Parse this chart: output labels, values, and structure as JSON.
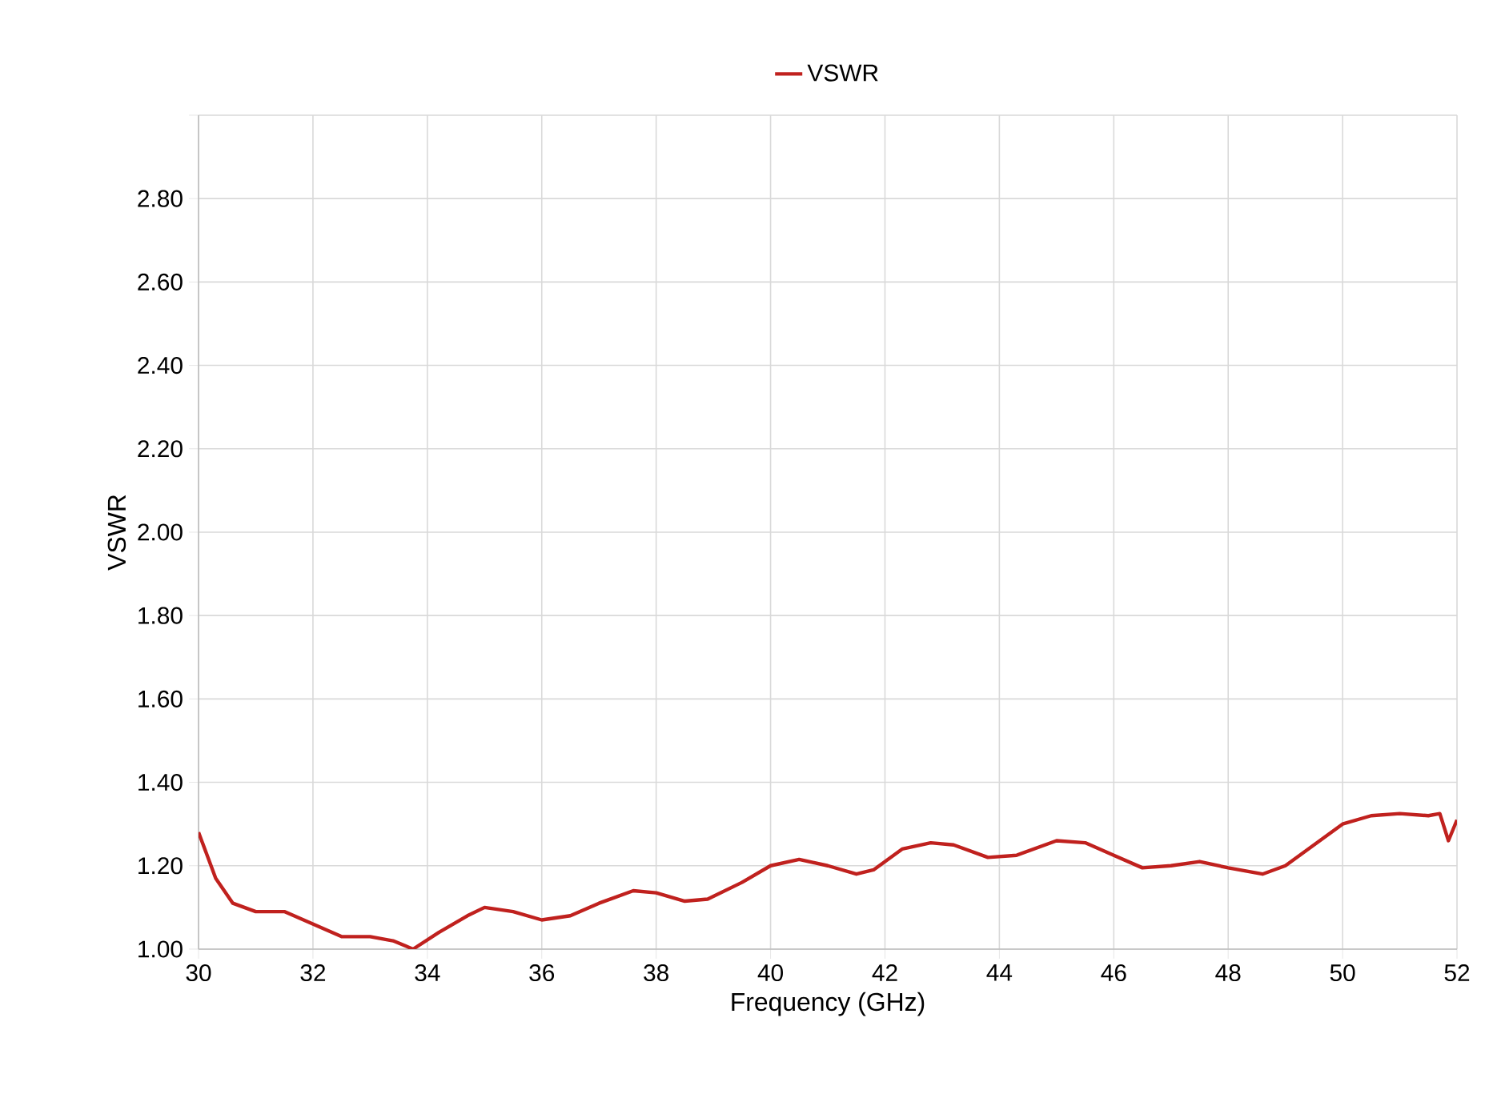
{
  "chart_data": {
    "type": "line",
    "xlabel": "Frequency (GHz)",
    "ylabel": "VSWR",
    "xlim": [
      30,
      52
    ],
    "xticks": [
      30,
      32,
      34,
      36,
      38,
      40,
      42,
      44,
      46,
      48,
      50,
      52
    ],
    "ylim": [
      1,
      3
    ],
    "yticks": [
      {
        "value": 1,
        "label": "1.00"
      },
      {
        "value": 1.2,
        "label": "1.20"
      },
      {
        "value": 1.4,
        "label": "1.40"
      },
      {
        "value": 1.6,
        "label": "1.60"
      },
      {
        "value": 1.8,
        "label": "1.80"
      },
      {
        "value": 2,
        "label": "2.00"
      },
      {
        "value": 2.2,
        "label": "2.20"
      },
      {
        "value": 2.4,
        "label": "2.40"
      },
      {
        "value": 2.6,
        "label": "2.60"
      },
      {
        "value": 2.8,
        "label": "2.80"
      },
      {
        "value": 3,
        "label": null
      }
    ],
    "grid": true,
    "legend": "top",
    "marker": "none",
    "line_style": "solid",
    "series": [
      {
        "name": "VSWR",
        "color": "#c0211e",
        "x": [
          30.0,
          30.3,
          30.6,
          31.0,
          31.5,
          32.0,
          32.5,
          33.0,
          33.4,
          33.75,
          34.2,
          34.7,
          35.0,
          35.5,
          36.0,
          36.5,
          37.0,
          37.6,
          38.0,
          38.5,
          38.9,
          39.5,
          40.0,
          40.5,
          41.0,
          41.5,
          41.8,
          42.3,
          42.8,
          43.2,
          43.8,
          44.3,
          45.0,
          45.5,
          46.0,
          46.5,
          47.0,
          47.5,
          48.0,
          48.6,
          49.0,
          49.5,
          50.0,
          50.5,
          51.0,
          51.5,
          51.7,
          51.85,
          52.0
        ],
        "values": [
          1.28,
          1.17,
          1.11,
          1.09,
          1.09,
          1.06,
          1.03,
          1.03,
          1.02,
          1.0,
          1.04,
          1.08,
          1.1,
          1.09,
          1.07,
          1.08,
          1.11,
          1.14,
          1.135,
          1.115,
          1.12,
          1.16,
          1.2,
          1.215,
          1.2,
          1.18,
          1.19,
          1.24,
          1.255,
          1.25,
          1.22,
          1.225,
          1.26,
          1.255,
          1.225,
          1.195,
          1.2,
          1.21,
          1.195,
          1.18,
          1.2,
          1.25,
          1.3,
          1.32,
          1.325,
          1.32,
          1.325,
          1.26,
          1.31
        ]
      }
    ]
  }
}
